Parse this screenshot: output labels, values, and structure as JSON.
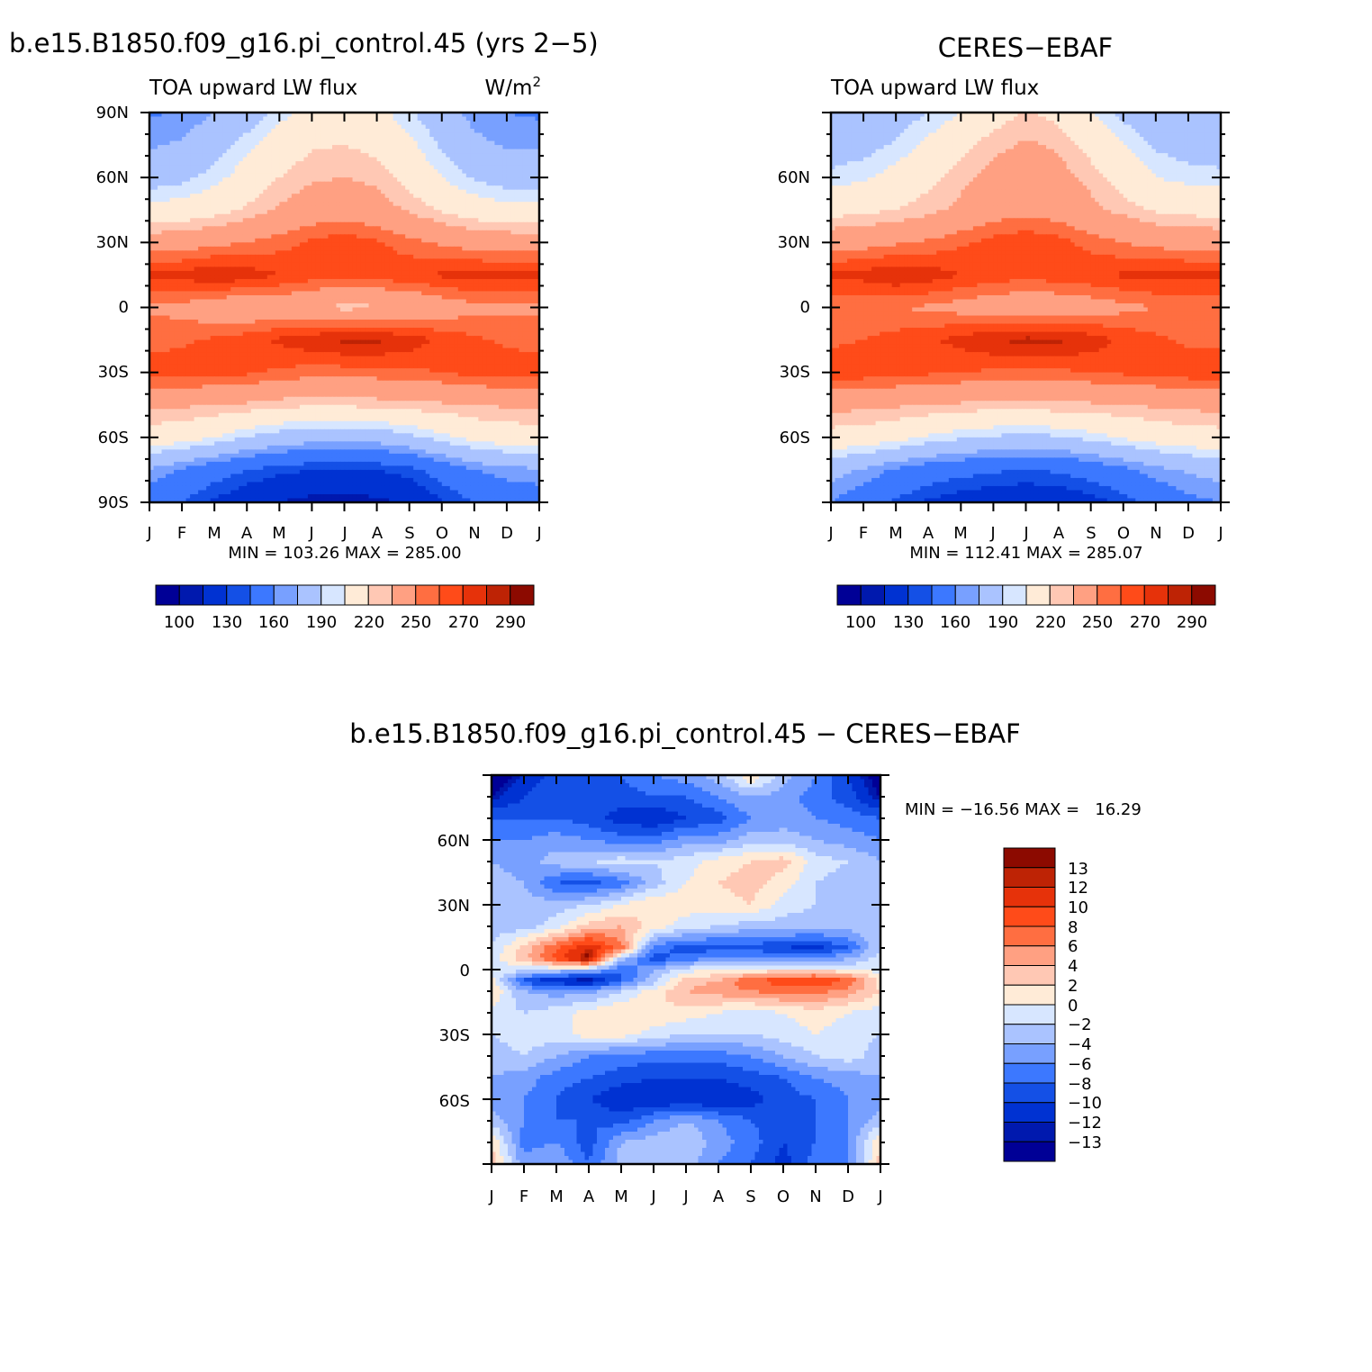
{
  "palette": {
    "fill_colors": [
      "#000096",
      "#0019ae",
      "#0032d2",
      "#1450e6",
      "#3c78ff",
      "#78a0ff",
      "#aac3ff",
      "#d7e6ff",
      "#ffebd7",
      "#ffc8b4",
      "#ffa082",
      "#ff6e41",
      "#ff4b19",
      "#e6320a",
      "#be2305",
      "#8c0a00"
    ],
    "diff_colors": [
      "#000096",
      "#0019ae",
      "#0032d2",
      "#1450e6",
      "#3c78ff",
      "#78a0ff",
      "#aac3ff",
      "#d7e6ff",
      "#ffebd7",
      "#ffc8b4",
      "#ffa082",
      "#ff6e41",
      "#ff4b19",
      "#e6320a",
      "#be2305",
      "#8c0a00"
    ]
  },
  "chart_data": [
    {
      "type": "heatmap",
      "title": "b.e15.B1850.f09_g16.pi_control.45 (yrs 2−5)",
      "subtitle_left": "TOA upward LW flux",
      "units_label": "W/m",
      "units_sup": "2",
      "x_tick_labels": [
        "J",
        "F",
        "M",
        "A",
        "M",
        "J",
        "J",
        "A",
        "S",
        "O",
        "N",
        "D",
        "J"
      ],
      "y_tick_labels": [
        "90N",
        "60N",
        "30N",
        "0",
        "30S",
        "60S",
        "90S"
      ],
      "ylim": [
        -90,
        90
      ],
      "stats": "MIN = 103.26 MAX = 285.00",
      "levels": [
        100,
        110,
        130,
        140,
        160,
        170,
        190,
        200,
        220,
        230,
        250,
        260,
        270,
        280,
        290
      ],
      "colorbar_labels": [
        "100",
        "130",
        "160",
        "190",
        "220",
        "250",
        "270",
        "290"
      ],
      "anchors_lat": [
        90,
        75,
        60,
        45,
        30,
        15,
        0,
        -15,
        -30,
        -45,
        -60,
        -75,
        -90
      ],
      "values": [
        [
          158,
          162,
          170,
          180,
          195,
          205,
          208,
          205,
          192,
          178,
          165,
          160,
          158
        ],
        [
          168,
          172,
          182,
          196,
          210,
          218,
          220,
          216,
          204,
          188,
          174,
          168,
          168
        ],
        [
          182,
          186,
          195,
          208,
          220,
          228,
          230,
          226,
          214,
          200,
          188,
          182,
          182
        ],
        [
          205,
          208,
          214,
          222,
          232,
          240,
          243,
          238,
          228,
          218,
          210,
          206,
          205
        ],
        [
          240,
          242,
          246,
          250,
          256,
          262,
          266,
          262,
          254,
          248,
          243,
          241,
          240
        ],
        [
          272,
          274,
          280,
          276,
          270,
          266,
          264,
          266,
          268,
          272,
          274,
          273,
          272
        ],
        [
          248,
          246,
          238,
          236,
          238,
          232,
          226,
          228,
          232,
          240,
          246,
          247,
          248
        ],
        [
          256,
          258,
          262,
          266,
          272,
          278,
          282,
          282,
          276,
          268,
          262,
          258,
          256
        ],
        [
          266,
          266,
          264,
          262,
          258,
          255,
          255,
          256,
          258,
          260,
          264,
          266,
          266
        ],
        [
          232,
          232,
          230,
          228,
          224,
          222,
          222,
          224,
          226,
          228,
          230,
          232,
          232
        ],
        [
          212,
          208,
          200,
          190,
          182,
          178,
          176,
          178,
          186,
          196,
          206,
          210,
          212
        ],
        [
          168,
          158,
          148,
          140,
          134,
          130,
          128,
          130,
          136,
          148,
          160,
          166,
          168
        ],
        [
          150,
          140,
          128,
          118,
          110,
          105,
          104,
          106,
          114,
          128,
          140,
          148,
          150
        ]
      ]
    },
    {
      "type": "heatmap",
      "title": "CERES−EBAF",
      "subtitle_left": "TOA upward LW flux",
      "x_tick_labels": [
        "J",
        "F",
        "M",
        "A",
        "M",
        "J",
        "J",
        "A",
        "S",
        "O",
        "N",
        "D",
        "J"
      ],
      "y_tick_labels": [
        "60N",
        "30N",
        "0",
        "30S",
        "60S"
      ],
      "ylim": [
        -90,
        90
      ],
      "stats": "MIN = 112.41 MAX = 285.07",
      "levels": [
        100,
        110,
        130,
        140,
        160,
        170,
        190,
        200,
        220,
        230,
        250,
        260,
        270,
        280,
        290
      ],
      "colorbar_labels": [
        "100",
        "130",
        "160",
        "190",
        "220",
        "250",
        "270",
        "290"
      ],
      "anchors_lat": [
        90,
        75,
        60,
        45,
        30,
        15,
        0,
        -15,
        -30,
        -45,
        -60,
        -75,
        -90
      ],
      "values": [
        [
          172,
          176,
          182,
          190,
          200,
          212,
          222,
          215,
          200,
          186,
          176,
          172,
          172
        ],
        [
          180,
          184,
          192,
          204,
          216,
          226,
          232,
          228,
          214,
          200,
          188,
          182,
          180
        ],
        [
          194,
          198,
          206,
          216,
          226,
          236,
          240,
          236,
          226,
          212,
          200,
          196,
          194
        ],
        [
          214,
          216,
          220,
          226,
          234,
          242,
          246,
          242,
          234,
          226,
          218,
          215,
          214
        ],
        [
          242,
          244,
          248,
          252,
          258,
          264,
          268,
          264,
          256,
          250,
          245,
          243,
          242
        ],
        [
          272,
          274,
          280,
          276,
          270,
          266,
          264,
          266,
          268,
          272,
          274,
          273,
          272
        ],
        [
          252,
          252,
          250,
          248,
          244,
          240,
          236,
          238,
          242,
          246,
          250,
          251,
          252
        ],
        [
          258,
          260,
          264,
          268,
          274,
          280,
          283,
          282,
          276,
          268,
          262,
          258,
          258
        ],
        [
          266,
          266,
          264,
          262,
          260,
          258,
          257,
          258,
          260,
          262,
          264,
          266,
          266
        ],
        [
          234,
          234,
          232,
          230,
          228,
          226,
          226,
          228,
          228,
          230,
          232,
          234,
          234
        ],
        [
          214,
          212,
          206,
          198,
          192,
          188,
          186,
          188,
          194,
          202,
          208,
          212,
          214
        ],
        [
          176,
          168,
          158,
          150,
          146,
          142,
          140,
          142,
          148,
          156,
          166,
          172,
          176
        ],
        [
          160,
          150,
          138,
          128,
          122,
          118,
          116,
          118,
          124,
          134,
          146,
          156,
          160
        ]
      ]
    },
    {
      "type": "heatmap",
      "title": "b.e15.B1850.f09_g16.pi_control.45 − CERES−EBAF",
      "x_tick_labels": [
        "J",
        "F",
        "M",
        "A",
        "M",
        "J",
        "J",
        "A",
        "S",
        "O",
        "N",
        "D",
        "J"
      ],
      "y_tick_labels": [
        "60N",
        "30N",
        "0",
        "30S",
        "60S"
      ],
      "ylim": [
        -90,
        90
      ],
      "stats": "MIN = −16.56 MAX =   16.29",
      "levels": [
        -13,
        -12,
        -10,
        -8,
        -6,
        -4,
        -2,
        0,
        2,
        4,
        6,
        8,
        10,
        12,
        13
      ],
      "colorbar_labels": [
        "13",
        "12",
        "10",
        "8",
        "6",
        "4",
        "2",
        "0",
        "−2",
        "−4",
        "−6",
        "−8",
        "−10",
        "−12",
        "−13"
      ],
      "anchors_lat": [
        90,
        80,
        70,
        60,
        50,
        40,
        30,
        20,
        10,
        5,
        0,
        -5,
        -10,
        -20,
        -30,
        -40,
        -50,
        -60,
        -70,
        -80,
        -90
      ],
      "values": [
        [
          -15,
          -12,
          -9,
          -8,
          -8,
          -6,
          -5,
          -3,
          2,
          -3,
          -6,
          -10,
          -15
        ],
        [
          -13,
          -10,
          -8,
          -8,
          -9,
          -8,
          -8,
          -6,
          -4,
          -5,
          -7,
          -9,
          -13
        ],
        [
          -8,
          -8,
          -8,
          -9,
          -11,
          -12,
          -10,
          -9,
          -6,
          -5,
          -6,
          -7,
          -8
        ],
        [
          -6,
          -6,
          -5,
          -6,
          -7,
          -7,
          -5,
          -5,
          -3,
          -3,
          -4,
          -5,
          -6
        ],
        [
          -4,
          -5,
          -3,
          -2,
          -1,
          -2,
          -1,
          1,
          2,
          3,
          -1,
          -2,
          -4
        ],
        [
          -3,
          -4,
          -8,
          -9,
          -7,
          -3,
          0,
          2,
          3,
          1,
          -2,
          -3,
          -3
        ],
        [
          -2,
          -3,
          -3,
          -2,
          0,
          2,
          1,
          1,
          2,
          -1,
          -2,
          -2,
          -2
        ],
        [
          -3,
          -3,
          -1,
          3,
          4,
          1,
          -1,
          -2,
          -3,
          -3,
          -3,
          -3,
          -3
        ],
        [
          -2,
          3,
          8,
          12,
          7,
          -7,
          -9,
          -9,
          -9,
          -10,
          -11,
          -8,
          -2
        ],
        [
          -1,
          3,
          9,
          14,
          -3,
          -9,
          -7,
          -5,
          -5,
          -5,
          -6,
          -4,
          -1
        ],
        [
          -1,
          -1,
          -2,
          -3,
          -8,
          -4,
          -1,
          0,
          0,
          1,
          1,
          0,
          -1
        ],
        [
          1,
          -9,
          -12,
          -13,
          -8,
          -3,
          3,
          4,
          8,
          9,
          10,
          8,
          1
        ],
        [
          2,
          -4,
          -5,
          -5,
          -2,
          1,
          4,
          5,
          6,
          7,
          7,
          5,
          2
        ],
        [
          -1,
          -2,
          -1,
          1,
          2,
          2,
          1,
          0,
          -1,
          0,
          1,
          0,
          -1
        ],
        [
          -2,
          -1,
          -1,
          1,
          1,
          -1,
          -2,
          -2,
          -2,
          -1,
          0,
          -1,
          -2
        ],
        [
          -3,
          -2,
          -4,
          -6,
          -7,
          -7,
          -7,
          -7,
          -6,
          -4,
          -2,
          -1,
          -3
        ],
        [
          -4,
          -5,
          -7,
          -8,
          -9,
          -10,
          -10,
          -10,
          -9,
          -8,
          -6,
          -5,
          -4
        ],
        [
          -5,
          -6,
          -8,
          -10,
          -12,
          -12,
          -12,
          -12,
          -11,
          -9,
          -8,
          -6,
          -5
        ],
        [
          -3,
          -6,
          -8,
          -8,
          -9,
          -6,
          -4,
          -6,
          -8,
          -9,
          -8,
          -6,
          -3
        ],
        [
          2,
          -7,
          -6,
          -9,
          -4,
          -3,
          -2,
          -5,
          -7,
          -10,
          -8,
          -6,
          2
        ],
        [
          3,
          -5,
          -4,
          -8,
          -3,
          -3,
          -3,
          -6,
          -8,
          -11,
          -7,
          -6,
          3
        ]
      ]
    }
  ]
}
